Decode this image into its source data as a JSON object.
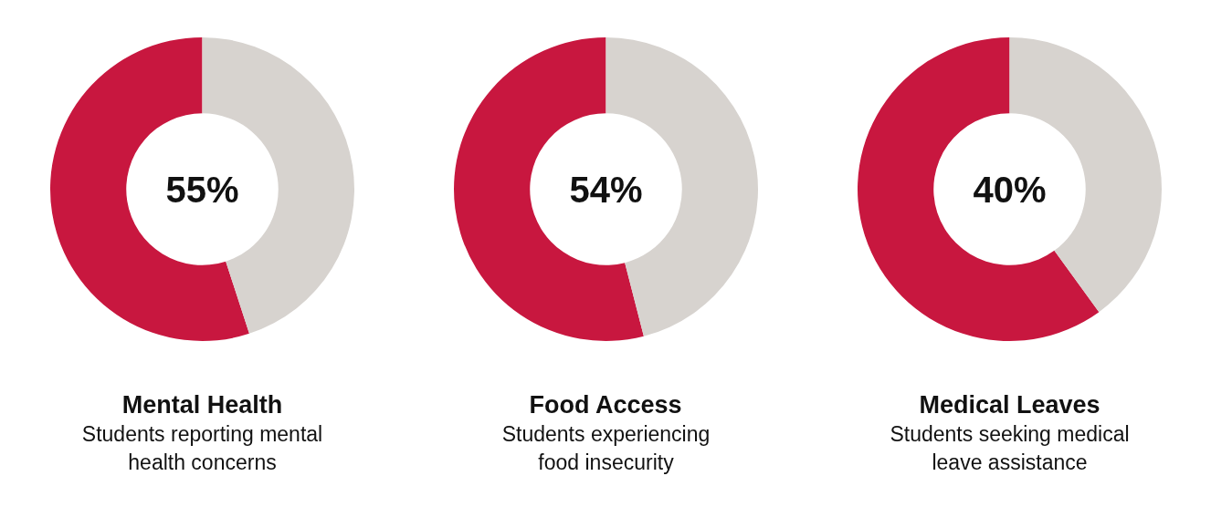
{
  "chart_data": [
    {
      "type": "donut",
      "title": "Mental Health",
      "subtitle": "Students reporting mental health concerns",
      "categories": [
        null,
        null
      ],
      "values": [
        55,
        45
      ],
      "colors": [
        "#c8173f",
        "#d7d3cf"
      ],
      "annotations": [
        "55%"
      ]
    },
    {
      "type": "donut",
      "title": "Food Access",
      "subtitle": "Students experiencing food insecurity",
      "categories": [
        null,
        null
      ],
      "values": [
        54,
        46
      ],
      "colors": [
        "#c8173f",
        "#d7d3cf"
      ],
      "annotations": [
        "54%"
      ]
    },
    {
      "type": "donut",
      "title": "Medical Leaves",
      "subtitle": "Students seeking medical leave assistance",
      "categories": [
        null,
        null
      ],
      "values": [
        60,
        40
      ],
      "colors": [
        "#c8173f",
        "#d7d3cf"
      ],
      "annotations": [
        "40%"
      ]
    }
  ]
}
